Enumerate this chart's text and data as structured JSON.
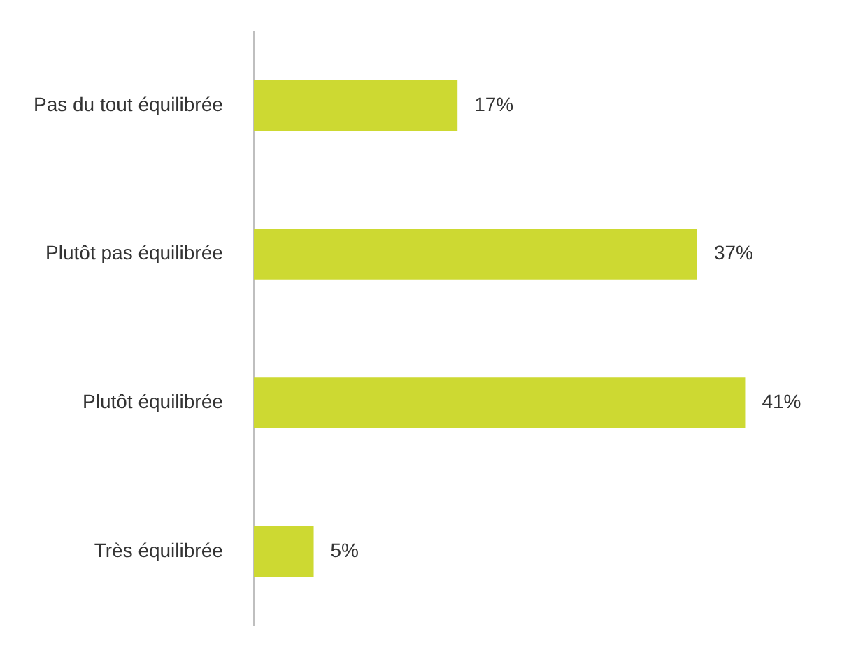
{
  "chart_data": {
    "type": "bar",
    "orientation": "horizontal",
    "categories": [
      "Pas du tout équilibrée",
      "Plutôt pas équilibrée",
      "Plutôt équilibrée",
      "Très équilibrée"
    ],
    "values": [
      17,
      37,
      41,
      5
    ],
    "value_labels": [
      "17%",
      "37%",
      "41%",
      "5%"
    ],
    "color": "#cdd932",
    "legend": false
  }
}
